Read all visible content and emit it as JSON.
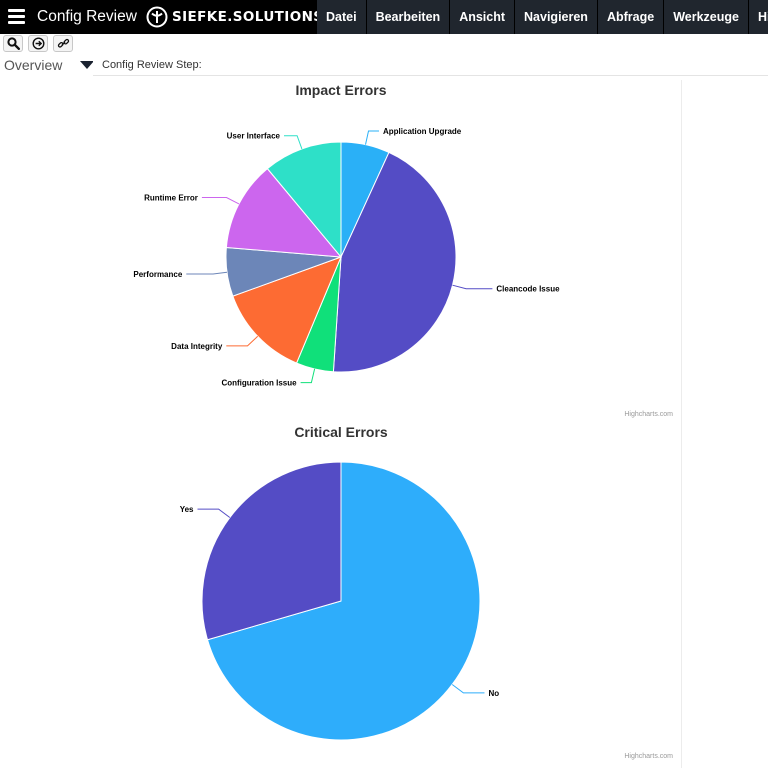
{
  "header": {
    "app_title": "Config Review",
    "logo_text": "SIEFKE.SOLUTIONS",
    "menu": [
      {
        "label": "Datei",
        "name": "menu-datei"
      },
      {
        "label": "Bearbeiten",
        "name": "menu-bearbeiten"
      },
      {
        "label": "Ansicht",
        "name": "menu-ansicht"
      },
      {
        "label": "Navigieren",
        "name": "menu-navigieren"
      },
      {
        "label": "Abfrage",
        "name": "menu-abfrage"
      },
      {
        "label": "Werkzeuge",
        "name": "menu-werkzeuge"
      },
      {
        "label": "Hilfe",
        "name": "menu-hilfe"
      }
    ]
  },
  "toolbar": {
    "icons": [
      "search-icon",
      "arrow-right-circle-icon",
      "link-icon"
    ]
  },
  "overview": {
    "label": "Overview",
    "step_label": "Config Review Step:"
  },
  "chart_data": [
    {
      "type": "pie",
      "title": "Impact Errors",
      "credit": "Highcharts.com",
      "slices": [
        {
          "label": "Application Upgrade",
          "value": 6.5,
          "color": "#2ab0f7"
        },
        {
          "label": "Cleancode Issue",
          "value": 42,
          "color": "#544cc5"
        },
        {
          "label": "Configuration Issue",
          "value": 5,
          "color": "#10e07a"
        },
        {
          "label": "Data Integrity",
          "value": 12.5,
          "color": "#fd6b33"
        },
        {
          "label": "Performance",
          "value": 6.5,
          "color": "#6c86b8"
        },
        {
          "label": "Runtime Error",
          "value": 12,
          "color": "#cc66ee"
        },
        {
          "label": "User Interface",
          "value": 10.5,
          "color": "#2ee0c8"
        }
      ]
    },
    {
      "type": "pie",
      "title": "Critical Errors",
      "credit": "Highcharts.com",
      "slices": [
        {
          "label": "No",
          "value": 70.5,
          "color": "#2eadfb"
        },
        {
          "label": "Yes",
          "value": 29.5,
          "color": "#544cc5"
        }
      ]
    }
  ]
}
